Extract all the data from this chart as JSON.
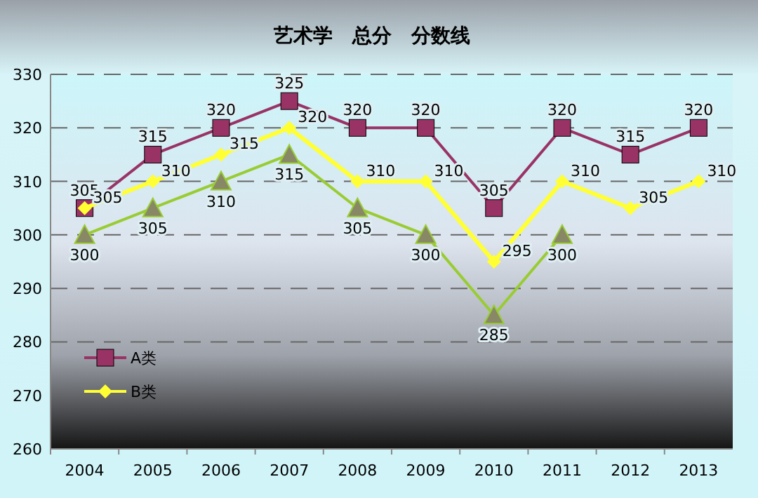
{
  "chart_data": {
    "type": "line",
    "title": "艺术学　总分　分数线",
    "categories": [
      "2004",
      "2005",
      "2006",
      "2007",
      "2008",
      "2009",
      "2010",
      "2011",
      "2012",
      "2013"
    ],
    "series": [
      {
        "name": "A类",
        "color": "#993366",
        "marker": "square",
        "values": [
          305,
          315,
          320,
          325,
          320,
          320,
          305,
          320,
          315,
          320
        ]
      },
      {
        "name": "B类",
        "color": "#ffff33",
        "marker": "diamond",
        "values": [
          305,
          310,
          315,
          320,
          310,
          310,
          295,
          310,
          305,
          310
        ]
      },
      {
        "color": "#99cc33",
        "marker": "triangle",
        "values": [
          300,
          305,
          310,
          315,
          305,
          300,
          285,
          300,
          null,
          null
        ]
      }
    ],
    "ylim": [
      260,
      330
    ],
    "yticks": [
      260,
      270,
      280,
      290,
      300,
      310,
      320,
      330
    ],
    "grid": "y",
    "legend": "bottom left",
    "data_labels": true
  }
}
